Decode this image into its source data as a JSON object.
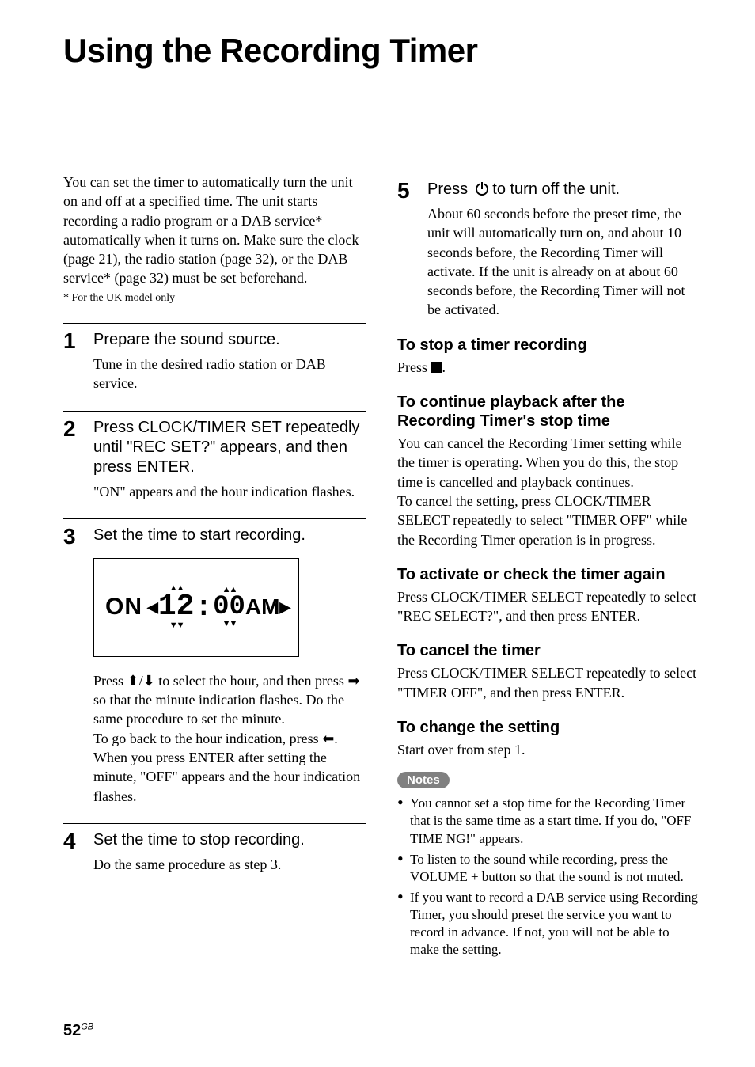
{
  "title": "Using the Recording Timer",
  "intro": "You can set the timer to automatically turn the unit on and off at a specified time. The unit starts recording a radio program or a DAB service* automatically when it turns on. Make sure the clock (page 21), the radio station (page 32), or the DAB service* (page 32) must be set beforehand.",
  "intro_footnote": "*  For the UK model only",
  "steps_left": [
    {
      "n": "1",
      "head": "Prepare the sound source.",
      "text": "Tune in the desired radio station or DAB service."
    },
    {
      "n": "2",
      "head": "Press CLOCK/TIMER SET repeatedly until \"REC SET?\" appears, and then press ENTER.",
      "text": "\"ON\" appears and the hour indication flashes."
    },
    {
      "n": "3",
      "head": "Set the time to start recording.",
      "text": ""
    },
    {
      "n": "4",
      "head": "Set the time to stop recording.",
      "text": "Do the same procedure as step 3."
    }
  ],
  "display": {
    "label": "ON",
    "hour": "12",
    "minute": "00",
    "ampm": "AM"
  },
  "step3_after": "Press / to select the hour, and then press  so that the minute indication flashes. Do the same procedure to set the minute.\nTo go back to the hour indication, press .\nWhen you press ENTER after setting the minute, \"OFF\" appears and the hour indication flashes.",
  "step5": {
    "n": "5",
    "head_pre": "Press ",
    "head_post": " to turn off the unit.",
    "text": "About 60 seconds before the preset time, the unit will automatically turn on, and about 10 seconds before, the Recording Timer will activate. If the unit is already on at about 60 seconds before, the Recording Timer will not be activated."
  },
  "subsections": [
    {
      "head": "To stop a timer recording",
      "text_pre": "Press ",
      "text_post": "."
    },
    {
      "head": "To continue playback after the Recording Timer's stop time",
      "text": "You can cancel the Recording Timer setting while the timer is operating. When you do this, the stop time is cancelled and playback continues.\nTo cancel the setting, press CLOCK/TIMER SELECT repeatedly to select \"TIMER OFF\" while the Recording Timer operation is in progress."
    },
    {
      "head": "To activate or check the timer again",
      "text": "Press CLOCK/TIMER SELECT repeatedly to select \"REC SELECT?\", and then press ENTER."
    },
    {
      "head": "To cancel the timer",
      "text": "Press CLOCK/TIMER SELECT repeatedly to select \"TIMER OFF\", and then press ENTER."
    },
    {
      "head": "To change the setting",
      "text": "Start over from step 1."
    }
  ],
  "notes_label": "Notes",
  "notes": [
    "You cannot set a stop time for the Recording Timer that is the same time as a start time. If you do, \"OFF TIME NG!\" appears.",
    "To listen to the sound while recording, press the VOLUME + button so that the sound is not muted.",
    "If you want to record a DAB service using Recording Timer, you should preset the service you want to record in advance. If not, you will not be able to make the setting."
  ],
  "page_number": "52",
  "page_suffix": "GB",
  "colors": {
    "text": "#000000",
    "pill_bg": "#808080",
    "pill_fg": "#ffffff",
    "bg": "#ffffff"
  },
  "typography": {
    "title_pt": 42,
    "body_pt": 18,
    "stepnum_pt": 28,
    "subhead_pt": 20,
    "notes_pt": 17,
    "footnote_pt": 14
  }
}
